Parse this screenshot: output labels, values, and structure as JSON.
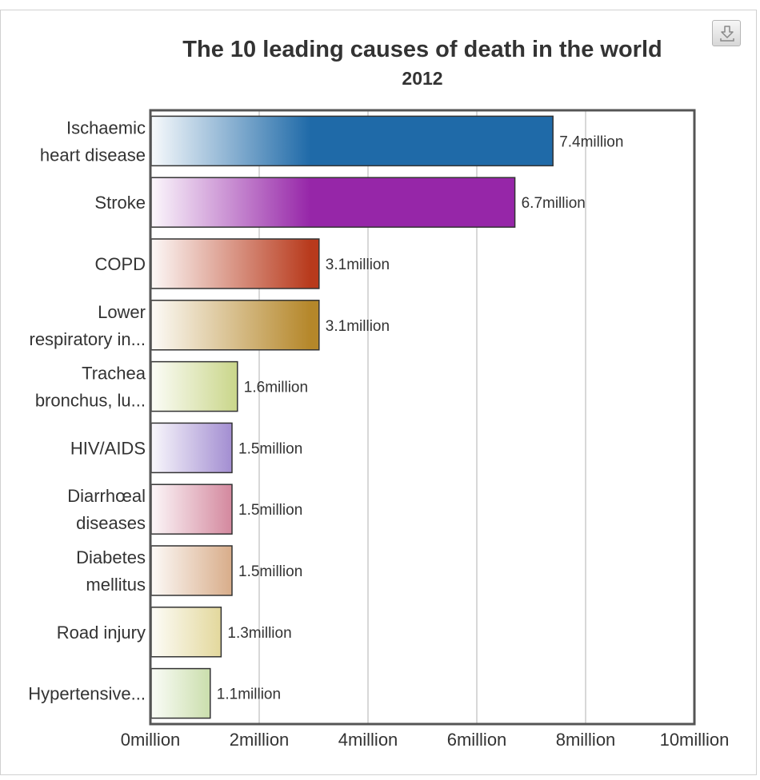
{
  "chart_data": {
    "type": "bar",
    "orientation": "horizontal",
    "title": "The 10 leading causes of death in the world",
    "subtitle": "2012",
    "xlabel": "",
    "ylabel": "",
    "xlim": [
      0,
      10
    ],
    "x_ticks": [
      "0million",
      "2million",
      "4million",
      "6million",
      "8million",
      "10million"
    ],
    "grid": true,
    "legend": "none",
    "categories": [
      [
        "Ischaemic",
        "heart disease"
      ],
      [
        "Stroke"
      ],
      [
        "COPD"
      ],
      [
        "Lower",
        "respiratory in..."
      ],
      [
        "Trachea",
        "bronchus, lu..."
      ],
      [
        "HIV/AIDS"
      ],
      [
        "Diarrhœal",
        "diseases"
      ],
      [
        "Diabetes",
        "mellitus"
      ],
      [
        "Road injury"
      ],
      [
        "Hypertensive..."
      ]
    ],
    "values": [
      7.4,
      6.7,
      3.1,
      3.1,
      1.6,
      1.5,
      1.5,
      1.5,
      1.3,
      1.1
    ],
    "value_labels": [
      "7.4million",
      "6.7million",
      "3.1million",
      "3.1million",
      "1.6million",
      "1.5million",
      "1.5million",
      "1.5million",
      "1.3million",
      "1.1million"
    ],
    "colors": [
      "#1f6aa8",
      "#9626a8",
      "#b83a1c",
      "#b5872a",
      "#9fb52c",
      "#4f27a8",
      "#ac1c46",
      "#b5621f",
      "#c2aa28",
      "#79ab2c"
    ]
  }
}
